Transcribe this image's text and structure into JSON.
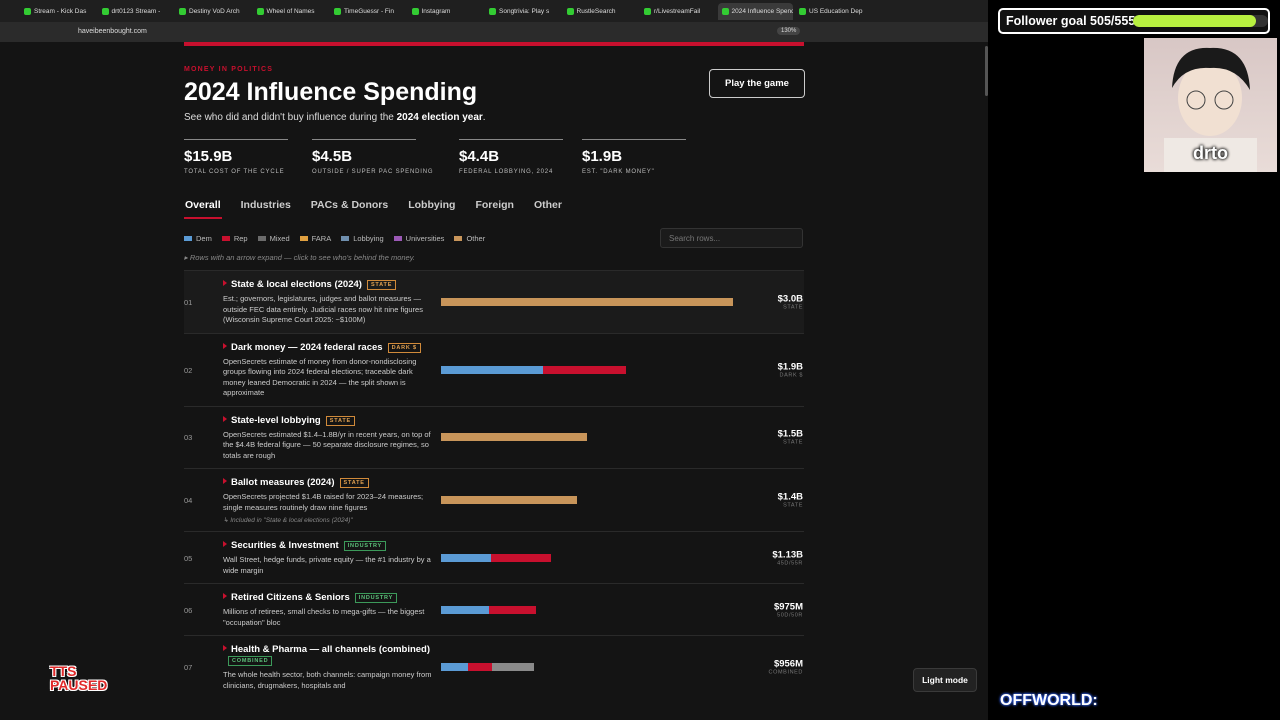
{
  "browser": {
    "tabs": [
      "Stream - Kick Das",
      "drt0123 Stream -",
      "Destiny VoD Arch",
      "Wheel of Names",
      "TimeGuessr - Fin",
      "Instagram",
      "Songtrivia: Play s",
      "RustleSearch",
      "r/LivestreamFail",
      "2024 Influence Spend",
      "US Education Dep"
    ],
    "active_tab": 9,
    "url": "haveibeenbought.com",
    "zoom": "130%"
  },
  "page": {
    "kicker": "MONEY IN POLITICS",
    "title": "2024 Influence Spending",
    "subtitle": [
      "See who did and didn't buy influence during the ",
      "2024 election year",
      "."
    ],
    "play_button": "Play the game",
    "stats": [
      {
        "value": "$15.9B",
        "label": "TOTAL COST OF THE CYCLE"
      },
      {
        "value": "$4.5B",
        "label": "OUTSIDE / SUPER PAC SPENDING"
      },
      {
        "value": "$4.4B",
        "label": "FEDERAL LOBBYING, 2024"
      },
      {
        "value": "$1.9B",
        "label": "EST. \"DARK MONEY\""
      }
    ],
    "nav": [
      "Overall",
      "Industries",
      "PACs & Donors",
      "Lobbying",
      "Foreign",
      "Other"
    ],
    "active_nav": 0,
    "legend": [
      {
        "name": "Dem",
        "color": "#5b9bd5"
      },
      {
        "name": "Rep",
        "color": "#c8102e"
      },
      {
        "name": "Mixed",
        "color": "#6b6b6b"
      },
      {
        "name": "FARA",
        "color": "#e0a040"
      },
      {
        "name": "Lobbying",
        "color": "#6f8fae"
      },
      {
        "name": "Universities",
        "color": "#9b59b6"
      },
      {
        "name": "Other",
        "color": "#c8955a"
      }
    ],
    "search_placeholder": "Search rows...",
    "hint": "▸ Rows with an arrow expand — click to see who's behind the money.",
    "rows": [
      {
        "rank": "01",
        "title": "State & local elections (2024)",
        "badge": "STATE",
        "desc": "Est.; governors, legislatures, judges and ballot measures — outside FEC data entirely. Judicial races now hit nine figures (Wisconsin Supreme Court 2025: ~$100M)",
        "amount": "$3.0B",
        "sub": "STATE",
        "segments": [
          {
            "color": "#c8955a",
            "value": 3.0
          }
        ]
      },
      {
        "rank": "02",
        "title": "Dark money — 2024 federal races",
        "badge": "DARK $",
        "desc": "OpenSecrets estimate of money from donor-nondisclosing groups flowing into 2024 federal elections; traceable dark money leaned Democratic in 2024 — the split shown is approximate",
        "amount": "$1.9B",
        "sub": "DARK $",
        "segments": [
          {
            "color": "#5b9bd5",
            "value": 1.05
          },
          {
            "color": "#c8102e",
            "value": 0.85
          }
        ]
      },
      {
        "rank": "03",
        "title": "State-level lobbying",
        "badge": "STATE",
        "desc": "OpenSecrets estimated $1.4–1.8B/yr in recent years, on top of the $4.4B federal figure — 50 separate disclosure regimes, so totals are rough",
        "amount": "$1.5B",
        "sub": "STATE",
        "segments": [
          {
            "color": "#c8955a",
            "value": 1.5
          }
        ]
      },
      {
        "rank": "04",
        "title": "Ballot measures (2024)",
        "badge": "STATE",
        "desc": "OpenSecrets projected $1.4B raised for 2023–24 measures; single measures routinely draw nine figures",
        "note": "↳ Included in \"State & local elections (2024)\"",
        "amount": "$1.4B",
        "sub": "STATE",
        "segments": [
          {
            "color": "#c8955a",
            "value": 1.4
          }
        ]
      },
      {
        "rank": "05",
        "title": "Securities & Investment",
        "badge": "INDUSTRY",
        "desc": "Wall Street, hedge funds, private equity — the #1 industry by a wide margin",
        "amount": "$1.13B",
        "sub": "45D/55R",
        "segments": [
          {
            "color": "#5b9bd5",
            "value": 0.51
          },
          {
            "color": "#c8102e",
            "value": 0.62
          }
        ]
      },
      {
        "rank": "06",
        "title": "Retired Citizens & Seniors",
        "badge": "INDUSTRY",
        "desc": "Millions of retirees, small checks to mega-gifts — the biggest \"occupation\" bloc",
        "amount": "$975M",
        "sub": "50D/50R",
        "segments": [
          {
            "color": "#5b9bd5",
            "value": 0.49
          },
          {
            "color": "#c8102e",
            "value": 0.49
          }
        ]
      },
      {
        "rank": "07",
        "title": "Health & Pharma — all channels (combined)",
        "badge": "COMBINED",
        "desc": "The whole health sector, both channels: campaign money from clinicians, drugmakers, hospitals and",
        "amount": "$956M",
        "sub": "COMBINED",
        "segments": [
          {
            "color": "#5b9bd5",
            "value": 0.28
          },
          {
            "color": "#c8102e",
            "value": 0.24
          },
          {
            "color": "#8a8a8a",
            "value": 0.44
          }
        ]
      }
    ],
    "light_mode": "Light mode"
  },
  "overlay": {
    "goal_label": "Follower goal",
    "goal_current": 505,
    "goal_separator": "/",
    "goal_target": 555,
    "cam_name": "drto",
    "tts": [
      "TTS",
      "PAUSED"
    ],
    "offworld": "OFFWORLD:"
  }
}
